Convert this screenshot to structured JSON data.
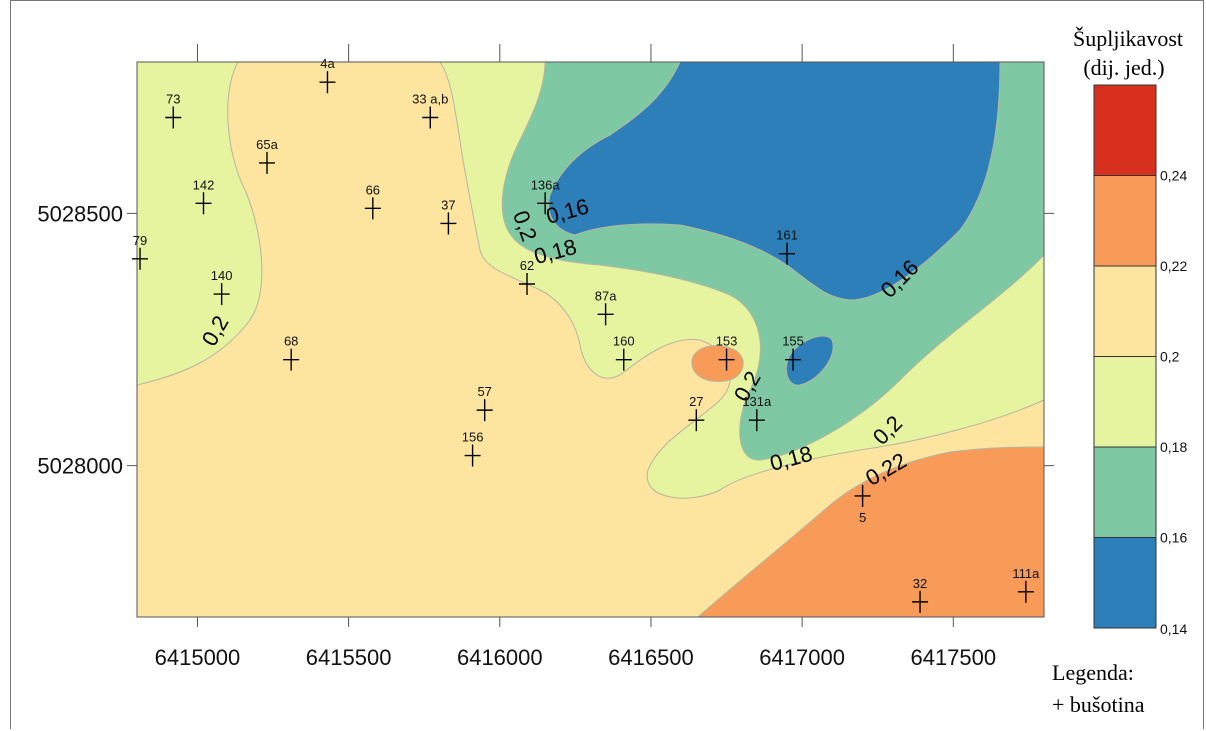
{
  "chart_data": {
    "type": "contour-map",
    "title": "",
    "xlabel": "",
    "ylabel": "",
    "xlim": [
      6414800,
      6417800
    ],
    "ylim": [
      5027700,
      5028800
    ],
    "x_ticks": [
      {
        "value": 6415000,
        "label": "6415000"
      },
      {
        "value": 6415500,
        "label": "6415500"
      },
      {
        "value": 6416000,
        "label": "6416000"
      },
      {
        "value": 6416500,
        "label": "6416500"
      },
      {
        "value": 6417000,
        "label": "6417000"
      },
      {
        "value": 6417500,
        "label": "6417500"
      }
    ],
    "y_ticks": [
      {
        "value": 5028500,
        "label": "5028500"
      },
      {
        "value": 5028000,
        "label": "5028000"
      }
    ],
    "legend": {
      "title_line1": "Šupljikavost",
      "title_line2": "(dij. jed.)",
      "note_line1": "Legenda:",
      "note_line2": "+ bušotina",
      "classes": [
        {
          "min": 0.14,
          "max": 0.16,
          "color": "#2c7fb8"
        },
        {
          "min": 0.16,
          "max": 0.18,
          "color": "#7ec9a3"
        },
        {
          "min": 0.18,
          "max": 0.2,
          "color": "#e6f4a0"
        },
        {
          "min": 0.2,
          "max": 0.22,
          "color": "#fde5a0"
        },
        {
          "min": 0.22,
          "max": 0.24,
          "color": "#f89a58"
        },
        {
          "min": 0.24,
          "max": 0.26,
          "color": "#d7301f"
        }
      ],
      "tick_labels": [
        "0,14",
        "0,16",
        "0,18",
        "0,2",
        "0,22",
        "0,24"
      ]
    },
    "contour_labels": [
      {
        "text": "0,2",
        "x": 6416060,
        "y": 5028470,
        "angle": 70
      },
      {
        "text": "0,16",
        "x": 6416230,
        "y": 5028490,
        "angle": -15
      },
      {
        "text": "0,18",
        "x": 6416190,
        "y": 5028410,
        "angle": -15
      },
      {
        "text": "0,2",
        "x": 6415080,
        "y": 5028260,
        "angle": -60
      },
      {
        "text": "0,16",
        "x": 6417340,
        "y": 5028360,
        "angle": -45
      },
      {
        "text": "0,2",
        "x": 6416840,
        "y": 5028150,
        "angle": -60
      },
      {
        "text": "0,18",
        "x": 6416970,
        "y": 5028000,
        "angle": -15
      },
      {
        "text": "0,2",
        "x": 6417300,
        "y": 5028060,
        "angle": -45
      },
      {
        "text": "0,22",
        "x": 6417290,
        "y": 5027980,
        "angle": -30
      }
    ],
    "wells": [
      {
        "name": "73",
        "x": 6414920,
        "y": 5028690,
        "label_pos": "above"
      },
      {
        "name": "4a",
        "x": 6415430,
        "y": 5028760,
        "label_pos": "above"
      },
      {
        "name": "33 a,b",
        "x": 6415770,
        "y": 5028690,
        "label_pos": "above"
      },
      {
        "name": "65a",
        "x": 6415230,
        "y": 5028600,
        "label_pos": "above"
      },
      {
        "name": "142",
        "x": 6415020,
        "y": 5028520,
        "label_pos": "above"
      },
      {
        "name": "66",
        "x": 6415580,
        "y": 5028510,
        "label_pos": "above"
      },
      {
        "name": "37",
        "x": 6415830,
        "y": 5028480,
        "label_pos": "above"
      },
      {
        "name": "136a",
        "x": 6416150,
        "y": 5028520,
        "label_pos": "above"
      },
      {
        "name": "79",
        "x": 6414810,
        "y": 5028410,
        "label_pos": "above"
      },
      {
        "name": "161",
        "x": 6416950,
        "y": 5028420,
        "label_pos": "above"
      },
      {
        "name": "140",
        "x": 6415080,
        "y": 5028340,
        "label_pos": "above"
      },
      {
        "name": "62",
        "x": 6416090,
        "y": 5028360,
        "label_pos": "above"
      },
      {
        "name": "87a",
        "x": 6416350,
        "y": 5028300,
        "label_pos": "above"
      },
      {
        "name": "68",
        "x": 6415310,
        "y": 5028210,
        "label_pos": "above"
      },
      {
        "name": "160",
        "x": 6416410,
        "y": 5028210,
        "label_pos": "above"
      },
      {
        "name": "153",
        "x": 6416750,
        "y": 5028210,
        "label_pos": "above"
      },
      {
        "name": "155",
        "x": 6416970,
        "y": 5028210,
        "label_pos": "above"
      },
      {
        "name": "57",
        "x": 6415950,
        "y": 5028110,
        "label_pos": "above"
      },
      {
        "name": "27",
        "x": 6416650,
        "y": 5028090,
        "label_pos": "above"
      },
      {
        "name": "131a",
        "x": 6416850,
        "y": 5028090,
        "label_pos": "above"
      },
      {
        "name": "156",
        "x": 6415910,
        "y": 5028020,
        "label_pos": "above"
      },
      {
        "name": "5",
        "x": 6417200,
        "y": 5027940,
        "label_pos": "below"
      },
      {
        "name": "32",
        "x": 6417390,
        "y": 5027730,
        "label_pos": "above"
      },
      {
        "name": "111a",
        "x": 6417740,
        "y": 5027750,
        "label_pos": "above"
      }
    ]
  }
}
